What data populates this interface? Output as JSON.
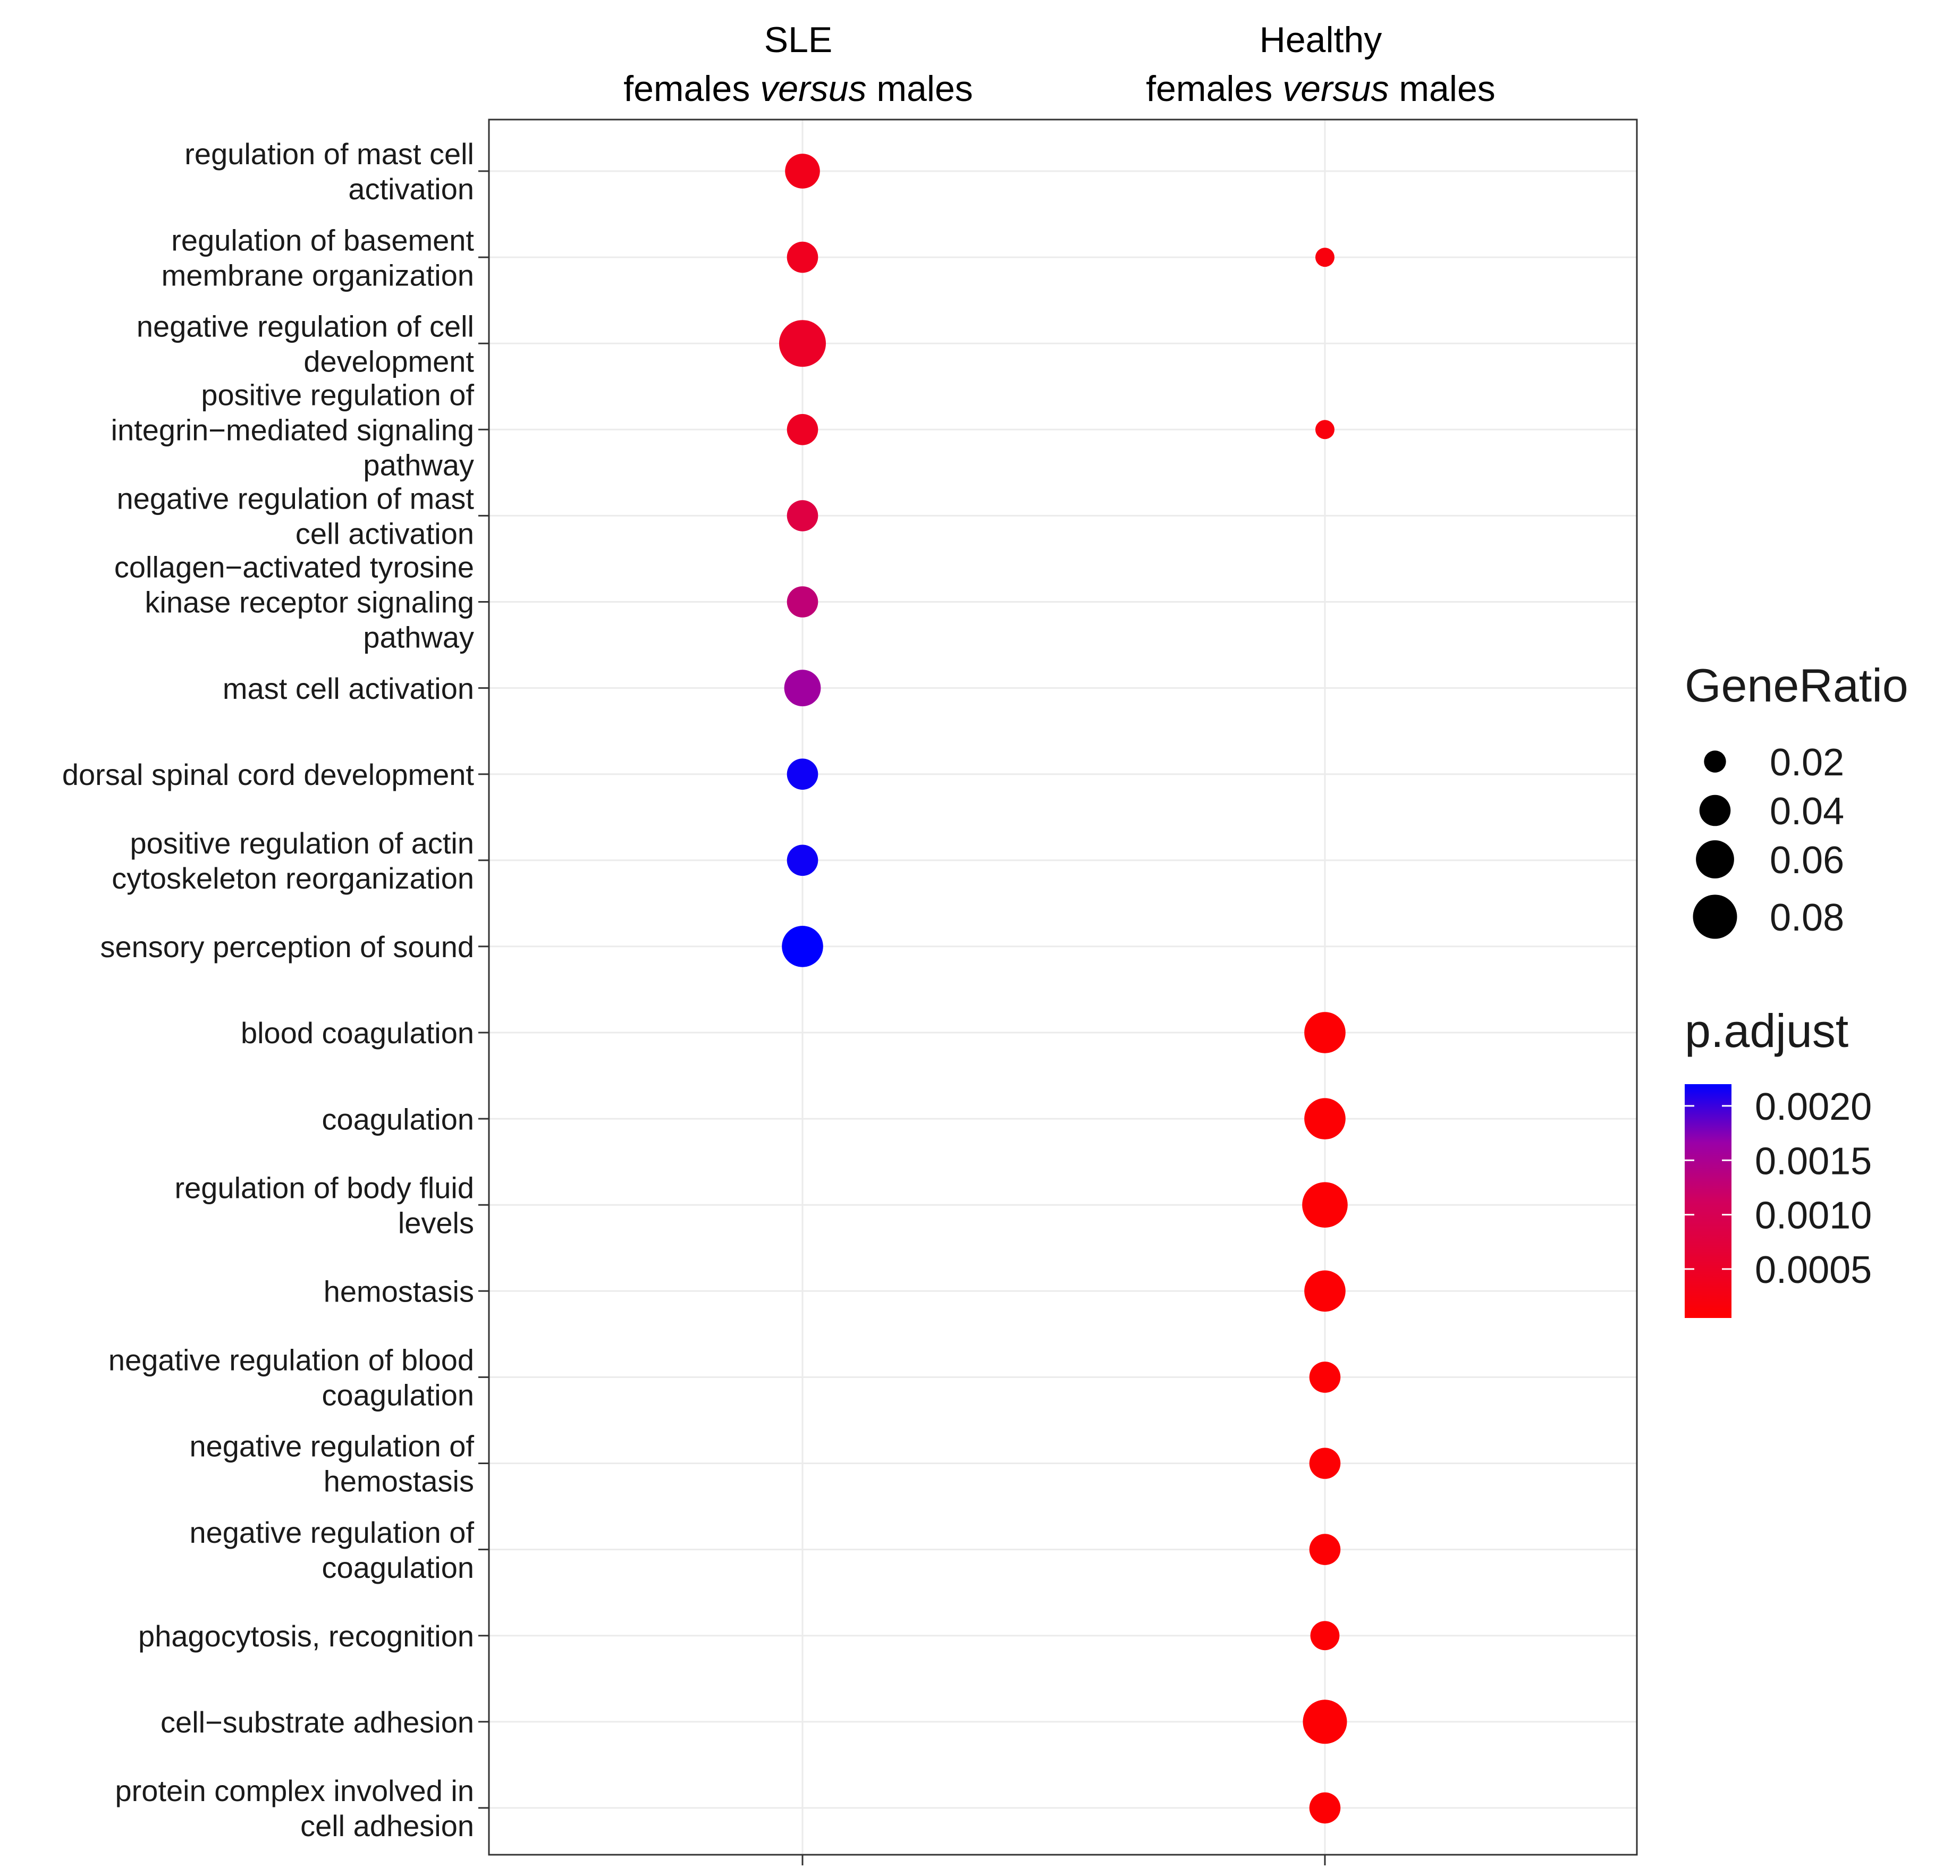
{
  "chart_data": {
    "type": "scatter",
    "subtype": "dotplot",
    "columns": [
      {
        "line1": "SLE",
        "line2_a": "females ",
        "line2_italic": "versus",
        "line2_b": " males"
      },
      {
        "line1": "Healthy",
        "line2_a": "females ",
        "line2_italic": "versus",
        "line2_b": " males"
      }
    ],
    "terms": [
      "regulation of mast cell activation",
      "regulation of basement membrane organization",
      "negative regulation of cell development",
      "positive regulation of integrin−mediated signaling pathway",
      "negative regulation of mast cell activation",
      "collagen−activated tyrosine kinase receptor signaling pathway",
      "mast cell activation",
      "dorsal spinal cord development",
      "positive regulation of actin cytoskeleton reorganization",
      "sensory perception of sound",
      "blood coagulation",
      "coagulation",
      "regulation of body fluid levels",
      "hemostasis",
      "negative regulation of blood coagulation",
      "negative regulation of hemostasis",
      "negative regulation of coagulation",
      "phagocytosis, recognition",
      "cell−substrate adhesion",
      "protein complex involved in cell adhesion"
    ],
    "term_lines": [
      [
        "regulation of mast cell",
        "activation"
      ],
      [
        "regulation of basement",
        "membrane organization"
      ],
      [
        "negative regulation of cell",
        "development"
      ],
      [
        "positive regulation of",
        "integrin−mediated signaling",
        "pathway"
      ],
      [
        "negative regulation of mast",
        "cell activation"
      ],
      [
        "collagen−activated tyrosine",
        "kinase receptor signaling",
        "pathway"
      ],
      [
        "mast cell activation"
      ],
      [
        "dorsal spinal cord development"
      ],
      [
        "positive regulation of actin",
        "cytoskeleton reorganization"
      ],
      [
        "sensory perception of sound"
      ],
      [
        "blood coagulation"
      ],
      [
        "coagulation"
      ],
      [
        "regulation of body fluid",
        "levels"
      ],
      [
        "hemostasis"
      ],
      [
        "negative regulation of blood",
        "coagulation"
      ],
      [
        "negative regulation of",
        "hemostasis"
      ],
      [
        "negative regulation of",
        "coagulation"
      ],
      [
        "phagocytosis, recognition"
      ],
      [
        "cell−substrate adhesion"
      ],
      [
        "protein complex involved in",
        "cell adhesion"
      ]
    ],
    "points": [
      {
        "term": 0,
        "col": 0,
        "gene_ratio": 0.05,
        "p_adjust": 0.00035
      },
      {
        "term": 1,
        "col": 0,
        "gene_ratio": 0.04,
        "p_adjust": 0.0004
      },
      {
        "term": 1,
        "col": 1,
        "gene_ratio": 0.015,
        "p_adjust": 0.0002
      },
      {
        "term": 2,
        "col": 0,
        "gene_ratio": 0.09,
        "p_adjust": 0.0005
      },
      {
        "term": 3,
        "col": 0,
        "gene_ratio": 0.04,
        "p_adjust": 0.00045
      },
      {
        "term": 3,
        "col": 1,
        "gene_ratio": 0.015,
        "p_adjust": 0.0002
      },
      {
        "term": 4,
        "col": 0,
        "gene_ratio": 0.04,
        "p_adjust": 0.0008
      },
      {
        "term": 5,
        "col": 0,
        "gene_ratio": 0.04,
        "p_adjust": 0.0013
      },
      {
        "term": 6,
        "col": 0,
        "gene_ratio": 0.055,
        "p_adjust": 0.0016
      },
      {
        "term": 7,
        "col": 0,
        "gene_ratio": 0.04,
        "p_adjust": 0.00215
      },
      {
        "term": 8,
        "col": 0,
        "gene_ratio": 0.04,
        "p_adjust": 0.00215
      },
      {
        "term": 9,
        "col": 0,
        "gene_ratio": 0.07,
        "p_adjust": 0.0022
      },
      {
        "term": 10,
        "col": 1,
        "gene_ratio": 0.07,
        "p_adjust": 0.0001
      },
      {
        "term": 11,
        "col": 1,
        "gene_ratio": 0.07,
        "p_adjust": 0.0001
      },
      {
        "term": 12,
        "col": 1,
        "gene_ratio": 0.085,
        "p_adjust": 0.0001
      },
      {
        "term": 13,
        "col": 1,
        "gene_ratio": 0.07,
        "p_adjust": 0.0001
      },
      {
        "term": 14,
        "col": 1,
        "gene_ratio": 0.04,
        "p_adjust": 0.0001
      },
      {
        "term": 15,
        "col": 1,
        "gene_ratio": 0.04,
        "p_adjust": 0.0001
      },
      {
        "term": 16,
        "col": 1,
        "gene_ratio": 0.04,
        "p_adjust": 0.0001
      },
      {
        "term": 17,
        "col": 1,
        "gene_ratio": 0.035,
        "p_adjust": 0.0001
      },
      {
        "term": 18,
        "col": 1,
        "gene_ratio": 0.08,
        "p_adjust": 0.0001
      },
      {
        "term": 19,
        "col": 1,
        "gene_ratio": 0.04,
        "p_adjust": 0.0001
      }
    ],
    "size_legend": {
      "title": "GeneRatio",
      "breaks": [
        0.02,
        0.04,
        0.06,
        0.08
      ],
      "labels": [
        "0.02",
        "0.04",
        "0.06",
        "0.08"
      ]
    },
    "color_legend": {
      "title": "p.adjust",
      "range": [
        5e-05,
        0.0022
      ],
      "breaks": [
        0.002,
        0.0015,
        0.001,
        0.0005
      ],
      "labels": [
        "0.0020",
        "0.0015",
        "0.0010",
        "0.0005"
      ],
      "low_color": "#ff0000",
      "high_color": "#0000ff"
    },
    "gene_ratio_range": [
      0.0,
      0.09
    ],
    "grid": true
  }
}
